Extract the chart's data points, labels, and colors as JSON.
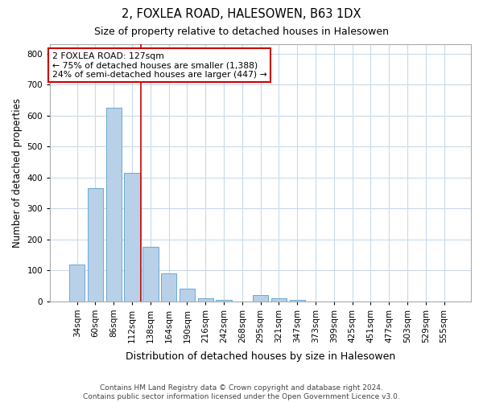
{
  "title": "2, FOXLEA ROAD, HALESOWEN, B63 1DX",
  "subtitle": "Size of property relative to detached houses in Halesowen",
  "xlabel": "Distribution of detached houses by size in Halesowen",
  "ylabel": "Number of detached properties",
  "footer": "Contains HM Land Registry data © Crown copyright and database right 2024.\nContains public sector information licensed under the Open Government Licence v3.0.",
  "bar_labels": [
    "34sqm",
    "60sqm",
    "86sqm",
    "112sqm",
    "138sqm",
    "164sqm",
    "190sqm",
    "216sqm",
    "242sqm",
    "268sqm",
    "295sqm",
    "321sqm",
    "347sqm",
    "373sqm",
    "399sqm",
    "425sqm",
    "451sqm",
    "477sqm",
    "503sqm",
    "529sqm",
    "555sqm"
  ],
  "bar_values": [
    120,
    365,
    625,
    415,
    175,
    90,
    40,
    10,
    5,
    0,
    20,
    10,
    5,
    0,
    0,
    0,
    0,
    0,
    0,
    0,
    0
  ],
  "bar_color": "#b8d0e8",
  "bar_edgecolor": "#6aaad4",
  "vline_x": 3.5,
  "annotation_text": "2 FOXLEA ROAD: 127sqm\n← 75% of detached houses are smaller (1,388)\n24% of semi-detached houses are larger (447) →",
  "annotation_box_color": "#ffffff",
  "annotation_border_color": "#cc0000",
  "vline_color": "#cc0000",
  "ylim": [
    0,
    830
  ],
  "yticks": [
    0,
    100,
    200,
    300,
    400,
    500,
    600,
    700,
    800
  ],
  "background_color": "#ffffff",
  "grid_color": "#c8daea"
}
